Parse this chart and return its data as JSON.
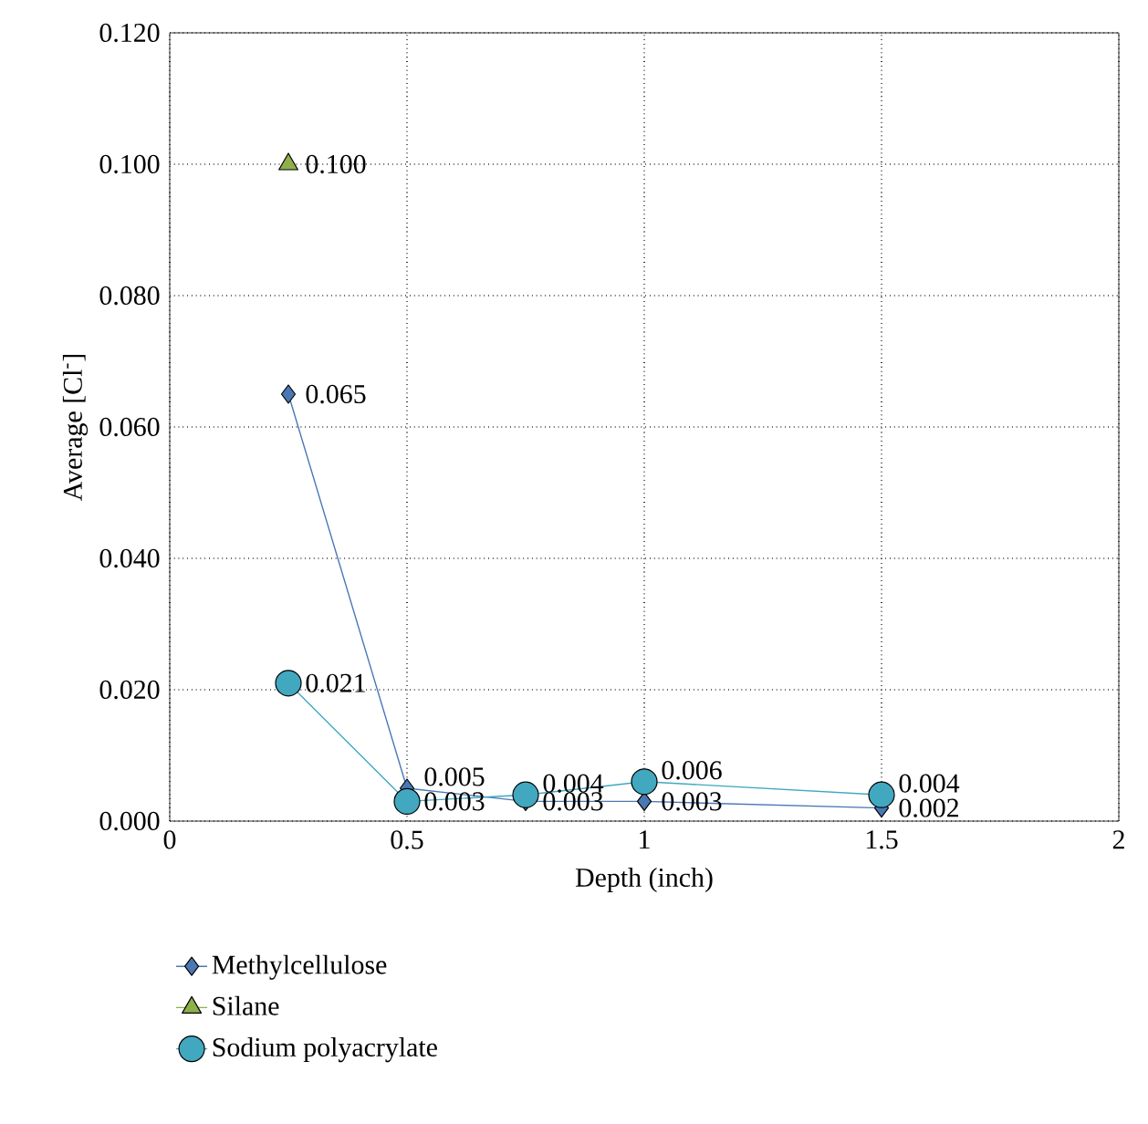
{
  "chart_data": {
    "type": "line",
    "xlabel": "Depth (inch)",
    "ylabel": "Average [Cl$^{-}$]",
    "xlim": [
      0,
      2
    ],
    "xticks": [
      0,
      0.5,
      1,
      1.5,
      2
    ],
    "ylim": [
      0,
      0.12
    ],
    "yticks": [
      {
        "value": 0,
        "label": "0.000"
      },
      {
        "value": 0.02,
        "label": "0.020"
      },
      {
        "value": 0.04,
        "label": "0.040"
      },
      {
        "value": 0.06,
        "label": "0.060"
      },
      {
        "value": 0.08,
        "label": "0.080"
      },
      {
        "value": 0.1,
        "label": "0.100"
      },
      {
        "value": 0.12,
        "label": "0.120"
      }
    ],
    "grid": true,
    "legend": "bottom",
    "line_style": "solid",
    "series": [
      {
        "name": "Methylcellulose",
        "color": "#4a78b5",
        "marker": "diamond",
        "x": [
          0.25,
          0.5,
          0.75,
          1,
          1.5
        ],
        "values": [
          0.065,
          0.005,
          0.003,
          0.003,
          0.002
        ],
        "value_labels": [
          "0.065",
          "0.005",
          "0.003",
          "0.003",
          "0.002"
        ]
      },
      {
        "name": "Silane",
        "color": "#8db04a",
        "marker": "triangle",
        "x": [
          0.25
        ],
        "values": [
          0.1
        ],
        "value_labels": [
          "0.100"
        ]
      },
      {
        "name": "Sodium polyacrylate",
        "color": "#41a8c0",
        "marker": "circle",
        "x": [
          0.25,
          0.5,
          0.75,
          1,
          1.5
        ],
        "values": [
          0.021,
          0.003,
          0.004,
          0.006,
          0.004
        ],
        "value_labels": [
          "0.021",
          "0.003",
          "0.004",
          "0.006",
          "0.004"
        ]
      }
    ]
  }
}
